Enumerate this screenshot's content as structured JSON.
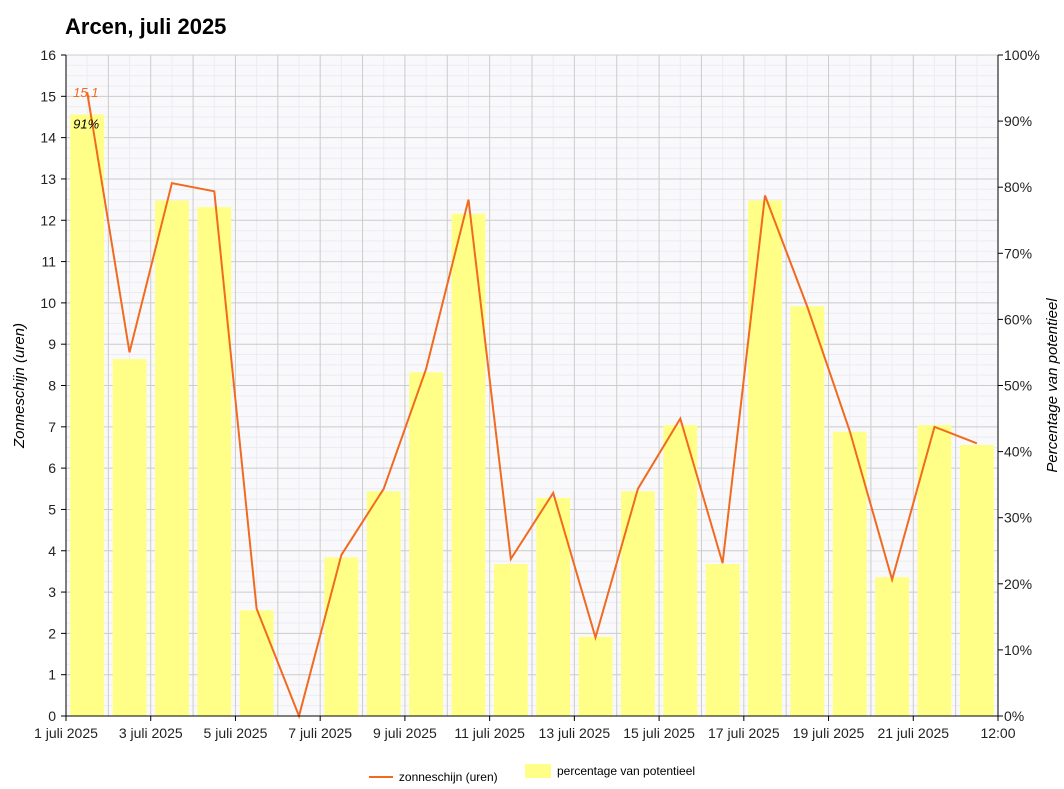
{
  "title": "Arcen, juli 2025",
  "colors": {
    "line": "#f26a1f",
    "bar": "#ffff88",
    "grid_major": "#cccccc",
    "grid_minor": "#ececf2",
    "plot_bg": "#f9f9fc"
  },
  "legend": {
    "line_label": "zonneschijn (uren)",
    "bar_label": "percentage van potentieel"
  },
  "chart_data": {
    "type": "bar",
    "title": "Arcen, juli 2025",
    "ylabel": "Zonneschijn (uren)",
    "y2label": "Percentage van potentieel",
    "ylim": [
      0,
      16
    ],
    "y2lim": [
      0,
      100
    ],
    "y_ticks": [
      "0",
      "1",
      "2",
      "3",
      "4",
      "5",
      "6",
      "7",
      "8",
      "9",
      "10",
      "11",
      "12",
      "13",
      "14",
      "15",
      "16"
    ],
    "y2_ticks": [
      "0%",
      "10%",
      "20%",
      "30%",
      "40%",
      "50%",
      "60%",
      "70%",
      "80%",
      "90%",
      "100%"
    ],
    "x_tick_labels": [
      "1 juli 2025",
      "3 juli 2025",
      "5 juli 2025",
      "7 juli 2025",
      "9 juli 2025",
      "11 juli 2025",
      "13 juli 2025",
      "15 juli 2025",
      "17 juli 2025",
      "19 juli 2025",
      "21 juli 2025",
      "12:00"
    ],
    "days": [
      1,
      2,
      3,
      4,
      5,
      6,
      7,
      8,
      9,
      10,
      11,
      12,
      13,
      14,
      15,
      16,
      17,
      18,
      19,
      20,
      21,
      22
    ],
    "series": [
      {
        "name": "percentage van potentieel",
        "kind": "bar",
        "axis": "right",
        "values": [
          91,
          54,
          78,
          77,
          16,
          0,
          24,
          34,
          52,
          76,
          23,
          33,
          12,
          34,
          44,
          23,
          78,
          62,
          43,
          21,
          44,
          41
        ]
      },
      {
        "name": "zonneschijn (uren)",
        "kind": "line",
        "axis": "left",
        "values": [
          15.1,
          8.8,
          12.9,
          12.7,
          2.6,
          0.0,
          3.9,
          5.5,
          8.4,
          12.5,
          3.8,
          5.4,
          1.9,
          5.5,
          7.2,
          3.7,
          12.6,
          9.9,
          6.9,
          3.3,
          7.0,
          6.6
        ]
      }
    ],
    "annotations": [
      {
        "day": 1,
        "line_label": "15,1",
        "bar_label": "91%"
      }
    ],
    "grid": true,
    "legend_position": "bottom"
  }
}
